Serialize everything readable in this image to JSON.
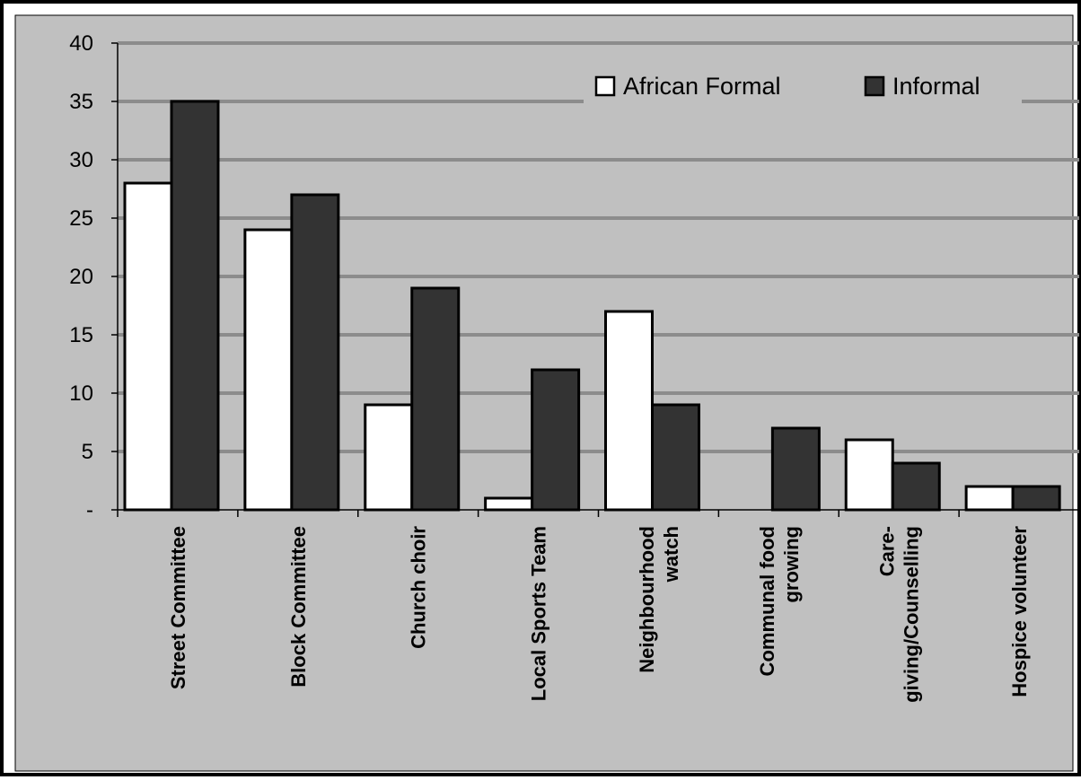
{
  "chart_data": {
    "type": "bar",
    "title": "",
    "xlabel": "",
    "ylabel": "",
    "ylim": [
      0,
      40
    ],
    "yticks": [
      0,
      5,
      10,
      15,
      20,
      25,
      30,
      35,
      40
    ],
    "ytick_labels": [
      "-",
      "5",
      "10",
      "15",
      "20",
      "25",
      "30",
      "35",
      "40"
    ],
    "categories": [
      "Street Committee",
      "Block Committee",
      "Church choir",
      "Local Sports Team",
      "Neighbourhood watch",
      "Communal food growing",
      "Care-giving/Counselling",
      "Hospice volunteer"
    ],
    "category_label_lines": [
      [
        "Street Committee"
      ],
      [
        "Block Committee"
      ],
      [
        "Church choir"
      ],
      [
        "Local Sports Team"
      ],
      [
        "Neighbourhood",
        "watch"
      ],
      [
        "Communal food",
        "growing"
      ],
      [
        "Care-",
        "giving/Counselling"
      ],
      [
        "Hospice volunteer"
      ]
    ],
    "series": [
      {
        "name": "African Formal",
        "values": [
          28,
          24,
          9,
          1,
          17,
          0,
          6,
          2
        ],
        "color": "#ffffff"
      },
      {
        "name": "Informal",
        "values": [
          35,
          27,
          19,
          12,
          9,
          7,
          4,
          2
        ],
        "color": "#333333"
      }
    ],
    "grid": true,
    "legend_position": "top-right",
    "colors": {
      "plot_background": "#c0c0c0",
      "gridline": "#8c8c8c",
      "border": "#000000"
    }
  }
}
